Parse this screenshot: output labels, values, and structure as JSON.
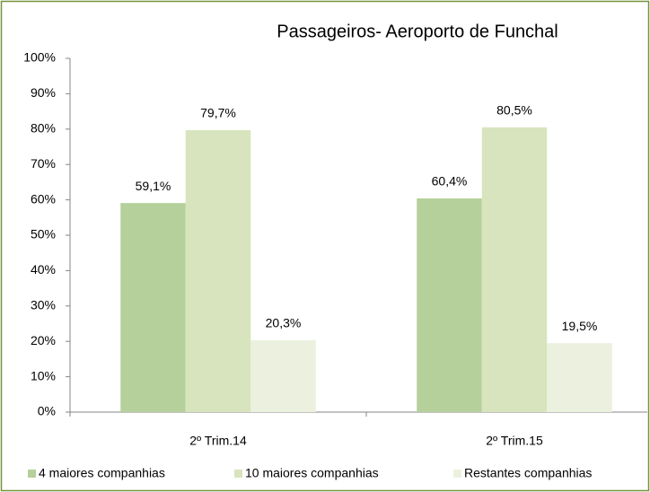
{
  "chart_data": {
    "type": "bar",
    "title": "Passageiros- Aeroporto de Funchal",
    "categories": [
      "2º Trim.14",
      "2º Trim.15"
    ],
    "series": [
      {
        "name": "4 maiores companhias",
        "color": "#b5d09a",
        "values": [
          59.1,
          60.4
        ],
        "value_labels": [
          "59,1%",
          "60,4%"
        ]
      },
      {
        "name": "10 maiores companhias",
        "color": "#d7e4bd",
        "values": [
          79.7,
          80.5
        ],
        "value_labels": [
          "79,7%",
          "80,5%"
        ]
      },
      {
        "name": "Restantes companhias",
        "color": "#ebf1de",
        "values": [
          20.3,
          19.5
        ],
        "value_labels": [
          "20,3%",
          "19,5%"
        ]
      }
    ],
    "ylim": [
      0,
      100
    ],
    "yticks": [
      {
        "value": 0,
        "label": "0%"
      },
      {
        "value": 10,
        "label": "10%"
      },
      {
        "value": 20,
        "label": "20%"
      },
      {
        "value": 30,
        "label": "30%"
      },
      {
        "value": 40,
        "label": "40%"
      },
      {
        "value": 50,
        "label": "50%"
      },
      {
        "value": 60,
        "label": "60%"
      },
      {
        "value": 70,
        "label": "70%"
      },
      {
        "value": 80,
        "label": "80%"
      },
      {
        "value": 90,
        "label": "90%"
      },
      {
        "value": 100,
        "label": "100%"
      }
    ],
    "legend": "bottom",
    "grid": false
  }
}
